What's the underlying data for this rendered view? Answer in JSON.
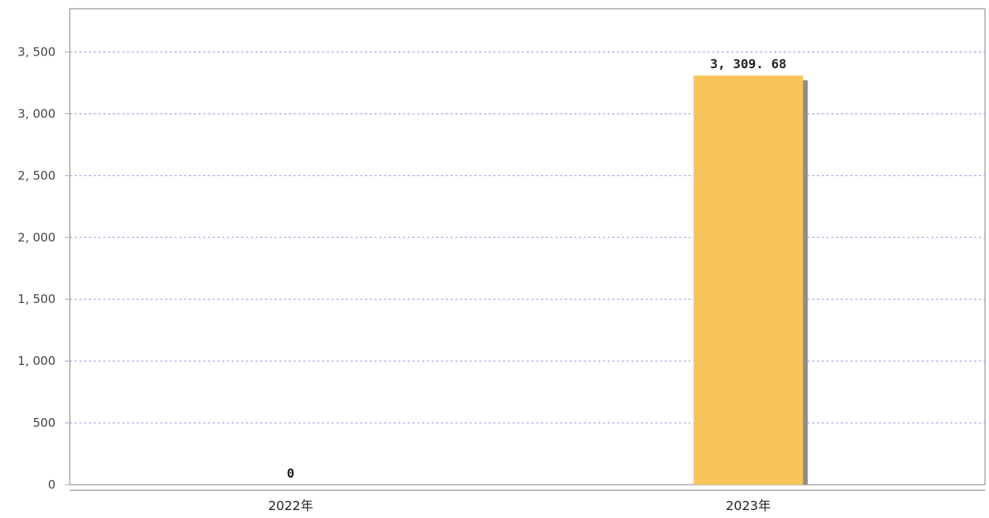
{
  "chart_data": {
    "type": "bar",
    "categories": [
      "2022年",
      "2023年"
    ],
    "values": [
      0,
      3309.68
    ],
    "data_labels": [
      "0",
      "3, 309. 68"
    ],
    "ylim": [
      0,
      3850
    ],
    "yticks": [
      0,
      500,
      1000,
      1500,
      2000,
      2500,
      3000,
      3500
    ],
    "ytick_labels": [
      "0",
      "500",
      "1, 000",
      "1, 500",
      "2, 000",
      "2, 500",
      "3, 000",
      "3, 500"
    ],
    "grid": true,
    "legend": "none",
    "colors": {
      "bar": "#F7C55A",
      "bar_shadow": "#8C8C8C",
      "grid": "#9C9CE6",
      "axis": "#AAAAAA"
    }
  }
}
